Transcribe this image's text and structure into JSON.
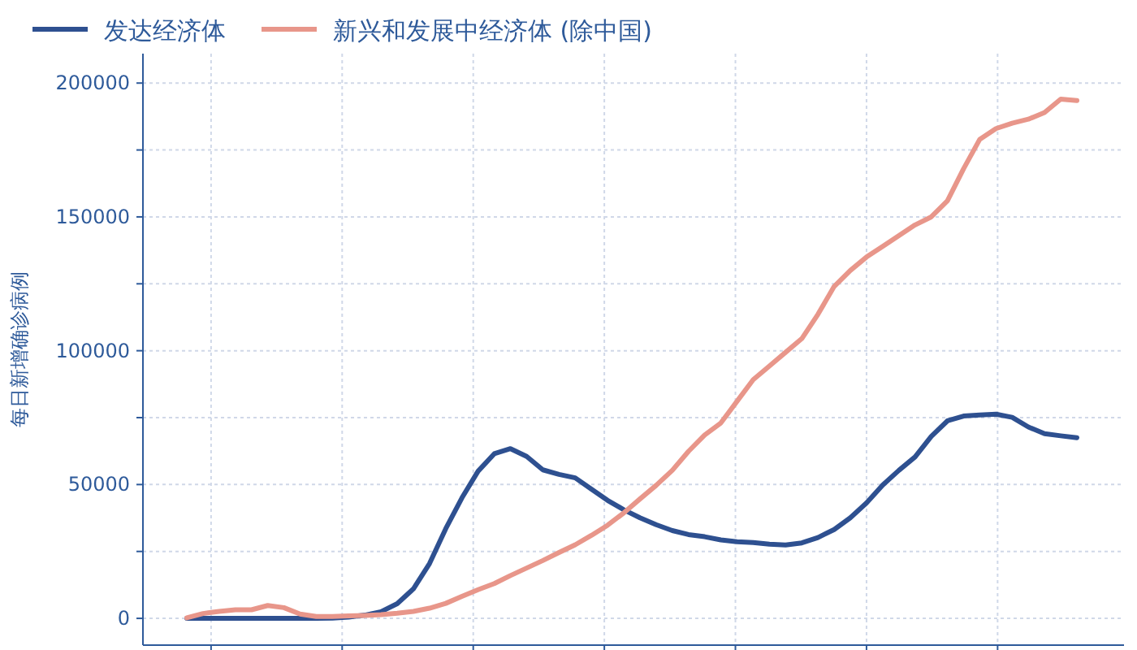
{
  "chart_data": {
    "type": "line",
    "ylabel": "每日新增确诊病例",
    "categories": [
      null,
      null,
      null,
      null,
      null,
      null,
      null,
      null,
      null,
      null,
      null,
      null,
      null,
      null,
      null,
      null,
      null,
      null,
      null,
      null,
      null,
      null,
      null,
      null,
      null,
      null,
      null,
      null,
      null,
      null,
      null,
      null,
      null,
      null,
      null,
      null,
      null,
      null,
      null,
      null,
      null,
      null,
      null,
      null,
      null,
      null,
      null,
      null,
      null,
      null,
      null,
      null,
      null,
      null,
      null,
      null
    ],
    "series": [
      {
        "name": "发达经济体",
        "color": "#2e5090",
        "values": [
          0,
          0,
          0,
          0,
          0,
          0,
          0,
          0,
          0,
          100,
          500,
          1200,
          2500,
          5500,
          11000,
          20500,
          33500,
          45000,
          55000,
          61500,
          63400,
          60500,
          55500,
          53800,
          52500,
          48300,
          44100,
          40600,
          37600,
          35000,
          32800,
          31300,
          30500,
          29300,
          28600,
          28300,
          27700,
          27400,
          28200,
          30200,
          33200,
          37600,
          43100,
          49800,
          55300,
          60300,
          68000,
          73800,
          75600,
          76000,
          76300,
          75100,
          71500,
          69000,
          68200,
          67500
        ]
      },
      {
        "name": "新兴和发展中经济体 (除中国)",
        "color": "#e8968a",
        "values": [
          200,
          1800,
          2600,
          3200,
          3200,
          4800,
          4000,
          1600,
          700,
          700,
          900,
          1100,
          1400,
          1900,
          2600,
          3800,
          5600,
          8200,
          10700,
          13000,
          16000,
          18800,
          21600,
          24600,
          27500,
          31000,
          34800,
          39400,
          44600,
          49700,
          55300,
          62400,
          68500,
          73000,
          81100,
          89200,
          94300,
          99400,
          104500,
          113600,
          124000,
          130000,
          135000,
          139000,
          143000,
          147000,
          150000,
          156000,
          168000,
          179000,
          183000,
          185000,
          186500,
          189000,
          194000,
          193500
        ]
      }
    ],
    "ylim": [
      -10000,
      211000
    ],
    "yticks": [
      0,
      {
        "value": 25000,
        "label": null
      },
      50000,
      {
        "value": 75000,
        "label": null
      },
      100000,
      {
        "value": 125000,
        "label": null
      },
      150000,
      {
        "value": 175000,
        "label": null
      },
      200000
    ],
    "grid": true,
    "legend": "top left",
    "tick_labels": "y"
  }
}
